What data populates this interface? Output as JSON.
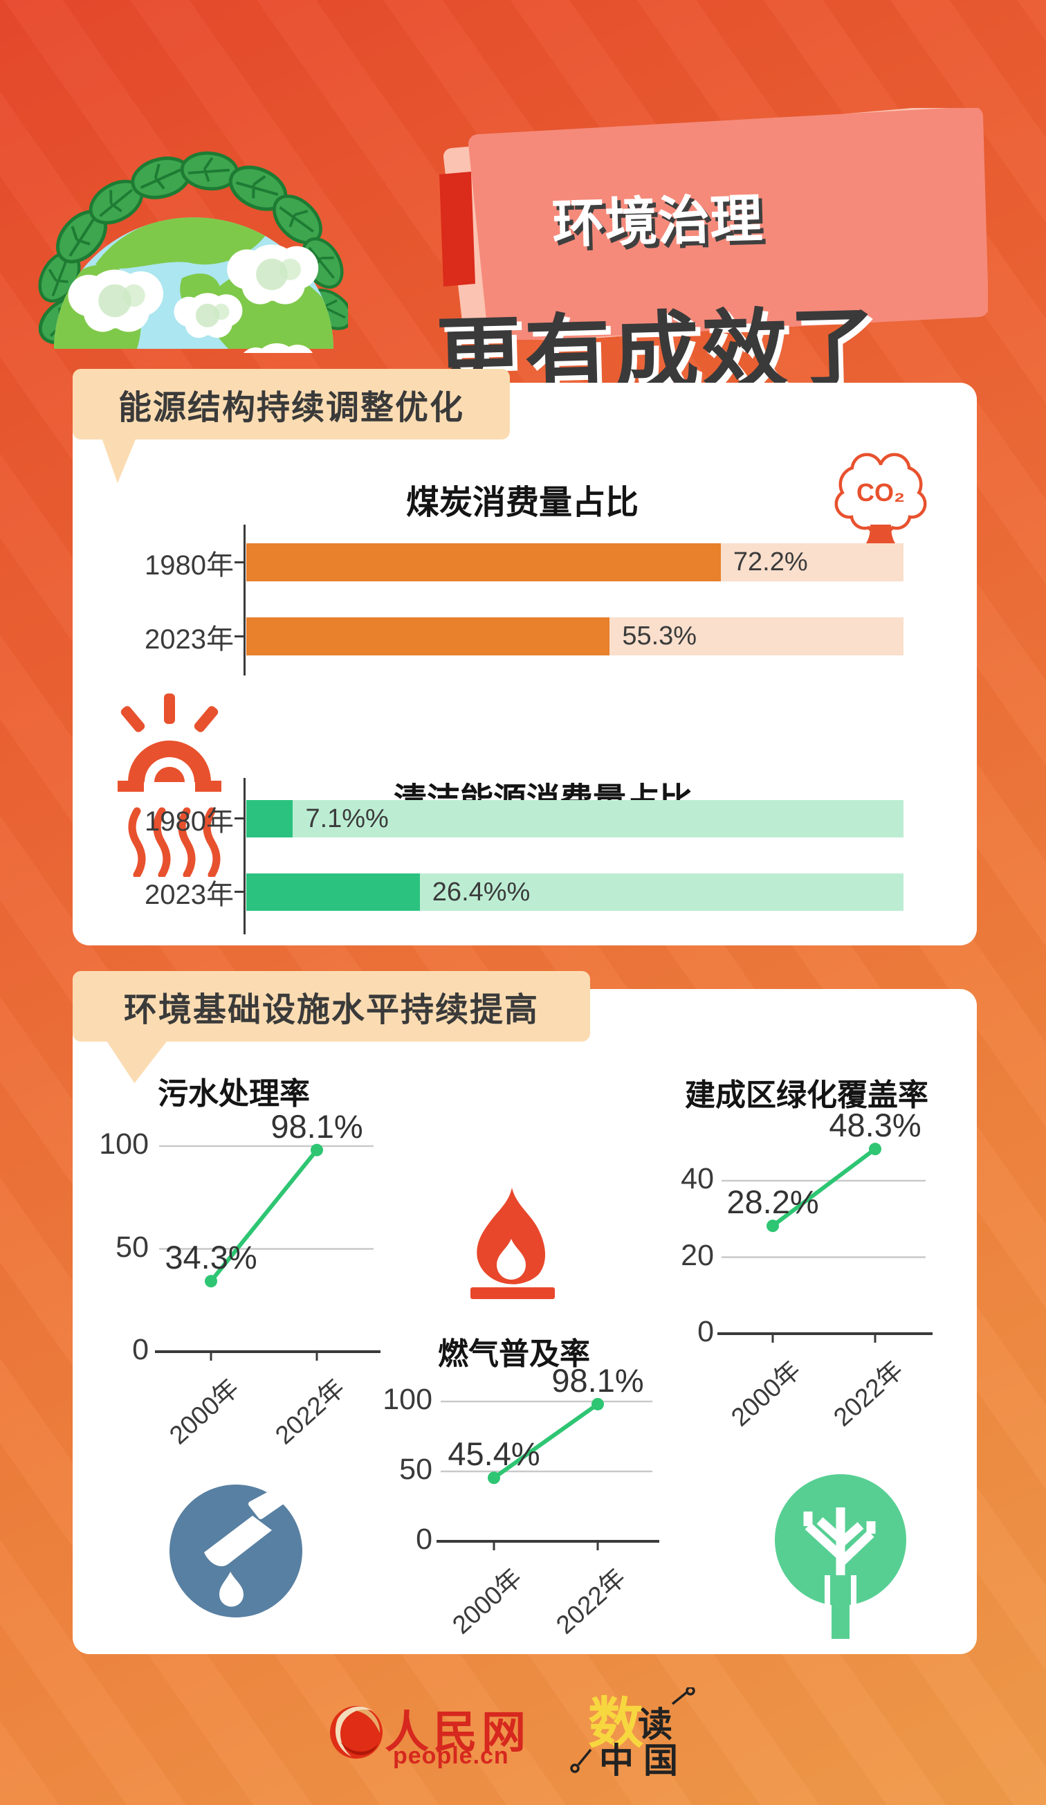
{
  "banner": {
    "title_line1": "环境治理",
    "title_line2": "更有成效了"
  },
  "sections": [
    {
      "header": "能源结构持续调整优化"
    },
    {
      "header": "环境基础设施水平持续提高"
    }
  ],
  "icons": {
    "co2_label": "CO₂"
  },
  "footer": {
    "brand_name": "人民网",
    "brand_domain": "people.cn",
    "logo_char_shu": "数",
    "logo_char_du": "读",
    "logo_chars_zhongguo": "中国"
  },
  "chart_data": [
    {
      "type": "bar",
      "orientation": "horizontal",
      "title": "煤炭消费量占比",
      "categories": [
        "1980年",
        "2023年"
      ],
      "values": [
        72.2,
        55.3
      ],
      "value_labels": [
        "72.2%",
        "55.3%"
      ],
      "xlim": [
        0,
        100
      ],
      "bar_color": "#E8802C",
      "track_color": "#F9DFCC"
    },
    {
      "type": "bar",
      "orientation": "horizontal",
      "title": "清洁能源消费量占比",
      "categories": [
        "1980年",
        "2023年"
      ],
      "values": [
        7.1,
        26.4
      ],
      "value_labels": [
        "7.1%%",
        "26.4%%"
      ],
      "xlim": [
        0,
        100
      ],
      "bar_color": "#2BC27F",
      "track_color": "#BCEDD3"
    },
    {
      "type": "line",
      "title": "污水处理率",
      "x": [
        "2000年",
        "2022年"
      ],
      "values": [
        34.3,
        98.1
      ],
      "value_labels": [
        "34.3%",
        "98.1%"
      ],
      "yticks": [
        0,
        50,
        100
      ],
      "ylim": [
        0,
        105
      ],
      "grid": true,
      "legend": false,
      "line_color": "#2EC573"
    },
    {
      "type": "line",
      "title": "燃气普及率",
      "x": [
        "2000年",
        "2022年"
      ],
      "values": [
        45.4,
        98.1
      ],
      "value_labels": [
        "45.4%",
        "98.1%"
      ],
      "yticks": [
        0,
        50,
        100
      ],
      "ylim": [
        0,
        105
      ],
      "grid": true,
      "legend": false,
      "line_color": "#2EC573"
    },
    {
      "type": "line",
      "title": "建成区绿化覆盖率",
      "x": [
        "2000年",
        "2022年"
      ],
      "values": [
        28.2,
        48.3
      ],
      "value_labels": [
        "28.2%",
        "48.3%"
      ],
      "yticks": [
        0,
        20,
        40
      ],
      "ylim": [
        0,
        52
      ],
      "grid": true,
      "legend": false,
      "line_color": "#2EC573"
    }
  ],
  "colors": {
    "background_top": "#E7482C",
    "background_bottom": "#F09A4A",
    "banner_fill": "#F58A7A",
    "banner_back": "#FBC3B2",
    "banner_accent": "#DB2B1B",
    "bubble": "#FBDCB2",
    "card": "#FFFFFF",
    "text_dark": "#3A3A3A",
    "line_green": "#2EC573",
    "coal_orange": "#E8802C",
    "clean_green": "#2BC27F",
    "water_blue": "#5880A2",
    "tree_green": "#57CF93",
    "flame_red": "#E8472B",
    "brand_red": "#D6281E",
    "shu_yellow": "#F7D73F"
  }
}
